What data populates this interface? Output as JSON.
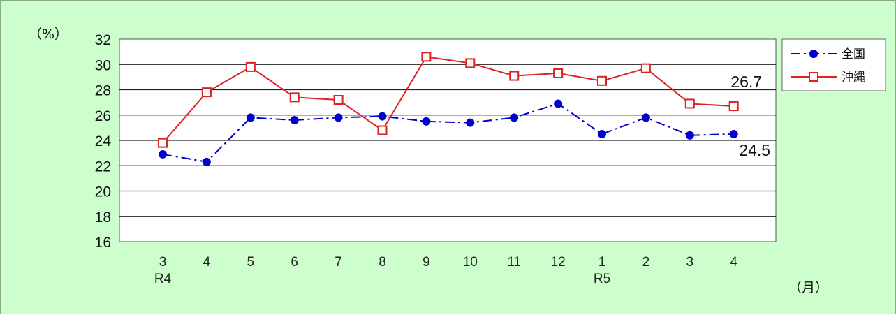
{
  "chart_data": {
    "type": "line",
    "y_unit": "（%）",
    "x_unit": "（月）",
    "ylim": [
      16,
      32
    ],
    "y_ticks": [
      "16",
      "18",
      "20",
      "22",
      "24",
      "26",
      "28",
      "30",
      "32"
    ],
    "grid": true,
    "categories": [
      "3",
      "4",
      "5",
      "6",
      "7",
      "8",
      "9",
      "10",
      "11",
      "12",
      "1",
      "2",
      "3",
      "4"
    ],
    "year_labels": [
      {
        "index": 0,
        "text": "R4"
      },
      {
        "index": 10,
        "text": "R5"
      }
    ],
    "legend_position": "right",
    "series": [
      {
        "name": "全国",
        "color": "#0000cc",
        "marker": "filled-circle",
        "line_style": "dash-dot",
        "values": [
          22.9,
          22.3,
          25.8,
          25.6,
          25.8,
          25.9,
          25.5,
          25.4,
          25.8,
          26.9,
          24.5,
          25.8,
          24.4,
          24.5
        ],
        "end_label": "24.5"
      },
      {
        "name": "沖縄",
        "color": "#dd2222",
        "marker": "open-square",
        "line_style": "solid",
        "values": [
          23.8,
          27.8,
          29.8,
          27.4,
          27.2,
          24.8,
          30.6,
          30.1,
          29.1,
          29.3,
          28.7,
          29.7,
          26.9,
          26.7
        ],
        "end_label": "26.7"
      }
    ]
  }
}
